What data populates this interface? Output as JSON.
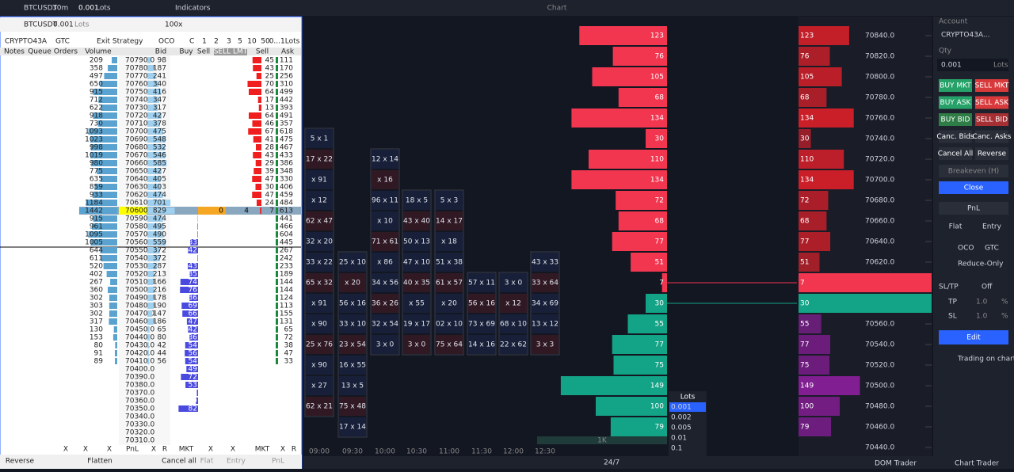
{
  "toolbar": {
    "symbol": "BTCUSDT",
    "timeframe": "30m",
    "lots": "0.001",
    "lots_unit": "Lots",
    "indicators": "Indicators",
    "title": "Chart"
  },
  "dom": {
    "symbol": "BTCUSDT",
    "lots": "0.001",
    "lots_unit": "Lots",
    "leverage": "100x",
    "account": "CRYPTO43A",
    "tif": "GTC",
    "strategy": "Exit Strategy",
    "oco": "OCO",
    "c": "C",
    "quick_sizes": [
      "1",
      "2",
      "3",
      "5",
      "10",
      "50",
      "0...1Lots"
    ],
    "columns": [
      "Notes",
      "Queue",
      "Orders",
      "Volume",
      "Bid",
      "Buy",
      "Sell",
      "SELL LMT",
      "Sell",
      "Ask"
    ],
    "prices": [
      "70790.0",
      "70780.0",
      "70770.0",
      "70760.0",
      "70750.0",
      "70740.0",
      "70730.0",
      "70720.0",
      "70710.0",
      "70700.0",
      "70690.0",
      "70680.0",
      "70670.0",
      "70660.0",
      "70650.0",
      "70640.0",
      "70630.0",
      "70620.0",
      "70610.0",
      "70600.0",
      "70590.0",
      "70580.0",
      "70570.0",
      "70560.0",
      "70550.0",
      "70540.0",
      "70530.0",
      "70520.0",
      "70510.0",
      "70500.0",
      "70490.0",
      "70480.0",
      "70470.0",
      "70460.0",
      "70450.0",
      "70440.0",
      "70430.0",
      "70420.0",
      "70410.0",
      "70400.0",
      "70390.0",
      "70380.0",
      "70370.0",
      "70360.0",
      "70350.0",
      "70340.0",
      "70330.0",
      "70320.0",
      "70310.0"
    ],
    "volume": [
      209,
      358,
      497,
      650,
      915,
      712,
      622,
      918,
      730,
      1093,
      1023,
      998,
      1019,
      980,
      775,
      635,
      859,
      933,
      1184,
      1442,
      915,
      961,
      1095,
      1005,
      644,
      611,
      520,
      402,
      267,
      360,
      302,
      303,
      302,
      317,
      130,
      153,
      80,
      91,
      89,
      null,
      null,
      null,
      null,
      null,
      null,
      null,
      null,
      null,
      null
    ],
    "bid": [
      98,
      187,
      241,
      340,
      416,
      347,
      317,
      427,
      378,
      475,
      548,
      532,
      546,
      585,
      427,
      405,
      403,
      474,
      701,
      829,
      474,
      495,
      490,
      559,
      372,
      372,
      287,
      213,
      166,
      216,
      178,
      190,
      147,
      186,
      65,
      80,
      42,
      44,
      56,
      null,
      null,
      null,
      null,
      null,
      null,
      null,
      null,
      null,
      null
    ],
    "buy": [
      null,
      null,
      null,
      null,
      null,
      null,
      null,
      null,
      null,
      null,
      null,
      null,
      null,
      null,
      null,
      null,
      null,
      null,
      null,
      null,
      1,
      2,
      2,
      33,
      42,
      2,
      43,
      35,
      74,
      76,
      36,
      69,
      66,
      47,
      42,
      36,
      54,
      56,
      54,
      49,
      72,
      53,
      5,
      9,
      82,
      null,
      null,
      null,
      null
    ],
    "sell": [
      45,
      43,
      25,
      70,
      64,
      17,
      13,
      64,
      46,
      67,
      41,
      28,
      43,
      29,
      39,
      47,
      30,
      47,
      24,
      7,
      null,
      null,
      null,
      null,
      null,
      null,
      null,
      null,
      null,
      null,
      null,
      null,
      null,
      null,
      null,
      null,
      null,
      null,
      null,
      null,
      null,
      null,
      null,
      null,
      null,
      null,
      null,
      null,
      null
    ],
    "ask": [
      111,
      170,
      256,
      310,
      499,
      442,
      393,
      491,
      357,
      618,
      475,
      467,
      433,
      386,
      348,
      330,
      406,
      459,
      484,
      613,
      441,
      466,
      604,
      445,
      267,
      242,
      233,
      189,
      144,
      144,
      124,
      113,
      155,
      131,
      65,
      72,
      38,
      47,
      33,
      null,
      null,
      null,
      null,
      null,
      null,
      null,
      null,
      null,
      null
    ],
    "order_qty": "0",
    "order_count": "4",
    "footer": [
      "X",
      "X",
      "X",
      "PnL",
      "X",
      "R",
      "MKT",
      "X",
      "X",
      "MKT",
      "X",
      "R"
    ],
    "actions": [
      "Reverse",
      "Flatten",
      "Cancel all",
      "Flat",
      "Entry",
      "PnL"
    ]
  },
  "chart": {
    "price_ticks": [
      {
        "value": 70840,
        "label": "70840.0"
      },
      {
        "value": 70820,
        "label": "70820.0"
      },
      {
        "value": 70800,
        "label": "70800.0"
      },
      {
        "value": 70780,
        "label": "70780.0"
      },
      {
        "value": 70760,
        "label": "70760.0"
      },
      {
        "value": 70740,
        "label": "70740.0"
      },
      {
        "value": 70720,
        "label": "70720.0"
      },
      {
        "value": 70700,
        "label": "70700.0"
      },
      {
        "value": 70680,
        "label": "70680.0"
      },
      {
        "value": 70660,
        "label": "70660.0"
      },
      {
        "value": 70640,
        "label": "70640.0"
      },
      {
        "value": 70620,
        "label": "70620.0"
      },
      {
        "value": 70600,
        "label": "70600.0"
      },
      {
        "value": 70580,
        "label": "70580.0"
      },
      {
        "value": 70560,
        "label": "70560.0"
      },
      {
        "value": 70540,
        "label": "70540.0"
      },
      {
        "value": 70520,
        "label": "70520.0"
      },
      {
        "value": 70500,
        "label": "70500.0"
      },
      {
        "value": 70480,
        "label": "70480.0"
      },
      {
        "value": 70460,
        "label": "70460.0"
      },
      {
        "value": 70440,
        "label": "70440.0"
      }
    ],
    "profile": [
      {
        "price": 70840,
        "value": 123
      },
      {
        "price": 70820,
        "value": 76
      },
      {
        "price": 70800,
        "value": 105
      },
      {
        "price": 70780,
        "value": 68
      },
      {
        "price": 70760,
        "value": 134
      },
      {
        "price": 70740,
        "value": 30
      },
      {
        "price": 70720,
        "value": 110
      },
      {
        "price": 70700,
        "value": 134
      },
      {
        "price": 70680,
        "value": 72
      },
      {
        "price": 70660,
        "value": 68
      },
      {
        "price": 70640,
        "value": 77
      },
      {
        "price": 70620,
        "value": 51
      },
      {
        "price": 70600,
        "value": 7
      },
      {
        "price": 70580,
        "value": 30
      },
      {
        "price": 70560,
        "value": 55
      },
      {
        "price": 70540,
        "value": 77
      },
      {
        "price": 70520,
        "value": 75
      },
      {
        "price": 70500,
        "value": 149
      },
      {
        "price": 70480,
        "value": 100
      },
      {
        "price": 70460,
        "value": 79
      }
    ],
    "last_price": 70600,
    "times": [
      "09:00",
      "09:30",
      "10:00",
      "10:30",
      "11:00",
      "11:30",
      "12:00",
      "12:30"
    ],
    "footprint": [
      {
        "high": 70740,
        "cells": [
          "5 x 1",
          "17 x 22",
          "x 91",
          "x 12",
          "62 x 47",
          "32 x 20",
          "33 x 22",
          "65 x 32",
          "x 91",
          "x 90",
          "25 x 76",
          "x 90",
          "x 27",
          "62 x 21"
        ]
      },
      {
        "high": 70620,
        "cells": [
          "25 x 10",
          "x 20",
          "56 x 16",
          "33 x 10",
          "23 x 54",
          "16 x 55",
          "13 x 5",
          "75 x 48",
          "17 x 14"
        ]
      },
      {
        "high": 70720,
        "cells": [
          "12 x 14",
          "x 16",
          "96 x 11",
          "x 10",
          "71 x 61",
          "x 86",
          "34 x 56",
          "36 x 26",
          "32 x 54",
          "3 x 0"
        ]
      },
      {
        "high": 70680,
        "cells": [
          "18 x 5",
          "43 x 40",
          "50 x 13",
          "47 x 10",
          "40 x 35",
          "x 55",
          "19 x 17",
          "3 x 0"
        ]
      },
      {
        "high": 70680,
        "cells": [
          "5 x 3",
          "14 x 17",
          "x 18",
          "51 x 38",
          "61 x 57",
          "x 20",
          "02 x 10",
          "75 x 64"
        ]
      },
      {
        "high": 70600,
        "cells": [
          "57 x 11",
          "56 x 16",
          "73 x 69",
          "14 x 16"
        ]
      },
      {
        "high": 70600,
        "cells": [
          "3 x 0",
          "x 12",
          "68 x 10",
          "22 x 62"
        ]
      },
      {
        "high": 70620,
        "cells": [
          "43 x 33",
          "33 x 64",
          "34 x 69",
          "13 x 12",
          "3 x 3"
        ]
      }
    ],
    "volume_note": "1K",
    "lots_menu": {
      "title": "Lots",
      "items": [
        "0.001",
        "0.002",
        "0.005",
        "0.01",
        "0.1"
      ]
    },
    "session": "24/7"
  },
  "panel": {
    "account_label": "Account",
    "account": "CRYPTO43A...",
    "qty_label": "Qty",
    "qty": "0.001",
    "qty_unit": "Lots",
    "buttons": [
      [
        "BUY MKT",
        "SELL MKT"
      ],
      [
        "BUY ASK",
        "SELL ASK"
      ],
      [
        "BUY BID",
        "SELL BID"
      ],
      [
        "Canc. Bids",
        "Canc. Asks"
      ],
      [
        "Cancel All",
        "Reverse"
      ]
    ],
    "breakeven": "Breakeven (H)",
    "close": "Close",
    "pnl": "PnL",
    "flat": "Flat",
    "entry": "Entry",
    "oco": "OCO",
    "tif": "GTC",
    "reduce_only": "Reduce-Only",
    "sltp": "SL/TP",
    "sltp_state": "Off",
    "tp": "TP",
    "tp_value": "1.0",
    "sl": "SL",
    "sl_value": "1.0",
    "pct": "%",
    "edit": "Edit",
    "trading_on_chart": "Trading on chart"
  },
  "tabs": [
    "DOM Trader",
    "Chart Trader"
  ]
}
